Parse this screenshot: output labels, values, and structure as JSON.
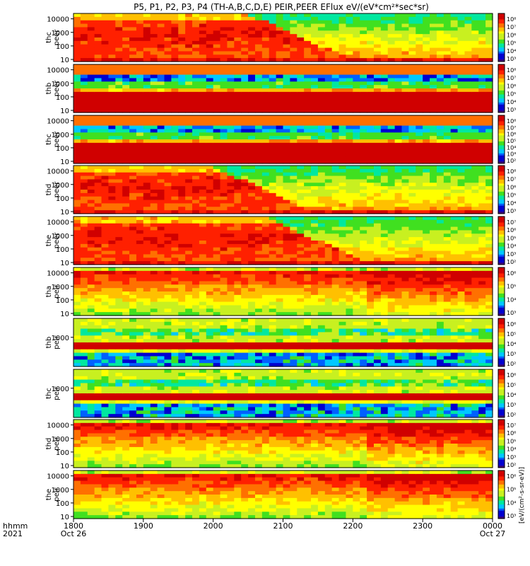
{
  "title": "P5, P1, P2, P3, P4 (TH-A,B,C,D,E) PEIR,PEER EFlux eV/(eV*cm²*sec*sr)",
  "colors": {
    "bg": "#ffffff",
    "axis": "#000000",
    "palette": [
      "#3a007a",
      "#0000d0",
      "#0060ff",
      "#00c8ff",
      "#00e8a0",
      "#40e020",
      "#c8f020",
      "#ffff00",
      "#ffc000",
      "#ff7000",
      "#ff2000",
      "#d00000"
    ]
  },
  "colorbar_label": "[eV/(cm²-s-sr-eV)]",
  "chart_data": {
    "type": "heatmap",
    "x_ticks": [
      "1800",
      "1900",
      "2000",
      "2100",
      "2200",
      "2300",
      "0000"
    ],
    "x_tick_sublabels": {
      "first": "Oct 26",
      "last": "Oct 27"
    },
    "x_label": {
      "line1": "hhmm",
      "line2": "2021"
    },
    "x_range": [
      "2021-10-26 18:00",
      "2021-10-27 00:00"
    ],
    "y_scale": "log",
    "panels": [
      {
        "probe": "thc",
        "species": "peer",
        "y_ticks": [
          "10000",
          "1000",
          "100",
          "10"
        ],
        "y_range": [
          7,
          25000
        ],
        "cb_ticks": [
          "10⁸",
          "10⁷",
          "10⁶",
          "10⁵",
          "10⁴",
          "10³"
        ],
        "profile": "peer_decay",
        "transition": 0.42
      },
      {
        "probe": "thb",
        "species": "peer",
        "y_ticks": [
          "10000",
          "1000",
          "100",
          "10"
        ],
        "y_range": [
          7,
          25000
        ],
        "cb_ticks": [
          "10⁸",
          "10⁷",
          "10⁶",
          "10⁵",
          "10⁴",
          "10³"
        ],
        "profile": "peer_band"
      },
      {
        "probe": "thc",
        "species": "peer",
        "y_ticks": [
          "10000",
          "1000",
          "100",
          "10"
        ],
        "y_range": [
          7,
          25000
        ],
        "cb_ticks": [
          "10⁸",
          "10⁷",
          "10⁶",
          "10⁵",
          "10⁴",
          "10³",
          "10²"
        ],
        "profile": "peer_band_low"
      },
      {
        "probe": "thd",
        "species": "peer",
        "y_ticks": [
          "10000",
          "1000",
          "100",
          "10"
        ],
        "y_range": [
          7,
          25000
        ],
        "cb_ticks": [
          "10⁸",
          "10⁷",
          "10⁶",
          "10⁵",
          "10⁴",
          "10³"
        ],
        "profile": "peer_decay",
        "transition": 0.33
      },
      {
        "probe": "the",
        "species": "peer",
        "y_ticks": [
          "10000",
          "1000",
          "100",
          "10"
        ],
        "y_range": [
          7,
          25000
        ],
        "cb_ticks": [
          "10⁷",
          "10⁶",
          "10⁵",
          "10⁴",
          "10³",
          "10²"
        ],
        "profile": "peer_decay",
        "transition": 0.46
      },
      {
        "probe": "tha",
        "species": "peir",
        "y_ticks": [
          "10000",
          "1000",
          "100",
          "10"
        ],
        "y_range": [
          7,
          25000
        ],
        "cb_ticks": [
          "10⁶",
          "10⁵",
          "10⁴",
          "10³"
        ],
        "profile": "peir_flat"
      },
      {
        "probe": "thb",
        "species": "peir",
        "y_ticks": [
          "1000"
        ],
        "y_range": [
          7,
          25000
        ],
        "cb_ticks": [
          "10⁶",
          "10⁵",
          "10⁴",
          "10³",
          "10²"
        ],
        "profile": "peir_band"
      },
      {
        "probe": "thc",
        "species": "peir",
        "y_ticks": [
          "1000"
        ],
        "y_range": [
          7,
          25000
        ],
        "cb_ticks": [
          "10⁶",
          "10⁵",
          "10⁴",
          "10³",
          "10²"
        ],
        "profile": "peir_band"
      },
      {
        "probe": "thd",
        "species": "peir",
        "y_ticks": [
          "10000",
          "1000",
          "100",
          "10"
        ],
        "y_range": [
          7,
          25000
        ],
        "cb_ticks": [
          "10⁷",
          "10⁶",
          "10⁵",
          "10⁴",
          "10³",
          "10²"
        ],
        "profile": "peir_flat"
      },
      {
        "probe": "the",
        "species": "peir",
        "y_ticks": [
          "10000",
          "1000",
          "100",
          "10"
        ],
        "y_range": [
          7,
          25000
        ],
        "cb_ticks": [
          "10⁶",
          "10⁵",
          "10⁴",
          "10³"
        ],
        "profile": "peir_flat"
      }
    ]
  }
}
